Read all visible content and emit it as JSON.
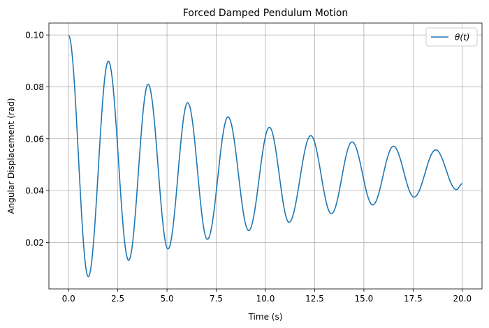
{
  "chart_data": {
    "type": "line",
    "title": "Forced Damped Pendulum Motion",
    "xlabel": "Time (s)",
    "ylabel": "Angular Displacement (rad)",
    "xlim": [
      -1.0,
      21.0
    ],
    "ylim": [
      0.0021,
      0.1046
    ],
    "xticks": [
      0.0,
      2.5,
      5.0,
      7.5,
      10.0,
      12.5,
      15.0,
      17.5,
      20.0
    ],
    "xtick_labels": [
      "0.0",
      "2.5",
      "5.0",
      "7.5",
      "10.0",
      "12.5",
      "15.0",
      "17.5",
      "20.0"
    ],
    "yticks": [
      0.02,
      0.04,
      0.06,
      0.08,
      0.1
    ],
    "ytick_labels": [
      "0.02",
      "0.04",
      "0.06",
      "0.08",
      "0.10"
    ],
    "grid": true,
    "legend": {
      "placement": "top-right",
      "entries": [
        "θ(t)"
      ]
    },
    "series": [
      {
        "name": "θ(t)",
        "color": "#1f77b4",
        "x": [
          0.0,
          1.0,
          2.02,
          3.05,
          4.04,
          5.05,
          6.05,
          7.05,
          8.1,
          9.15,
          10.2,
          11.2,
          12.3,
          13.35,
          14.4,
          15.45,
          16.5,
          17.55,
          18.65,
          19.7,
          20.0
        ],
        "y": [
          0.0998,
          0.0068,
          0.0899,
          0.0131,
          0.081,
          0.0175,
          0.0739,
          0.0212,
          0.0684,
          0.0246,
          0.0644,
          0.0278,
          0.0612,
          0.0311,
          0.0588,
          0.0345,
          0.0571,
          0.0375,
          0.0557,
          0.0404,
          0.0427
        ]
      }
    ]
  }
}
